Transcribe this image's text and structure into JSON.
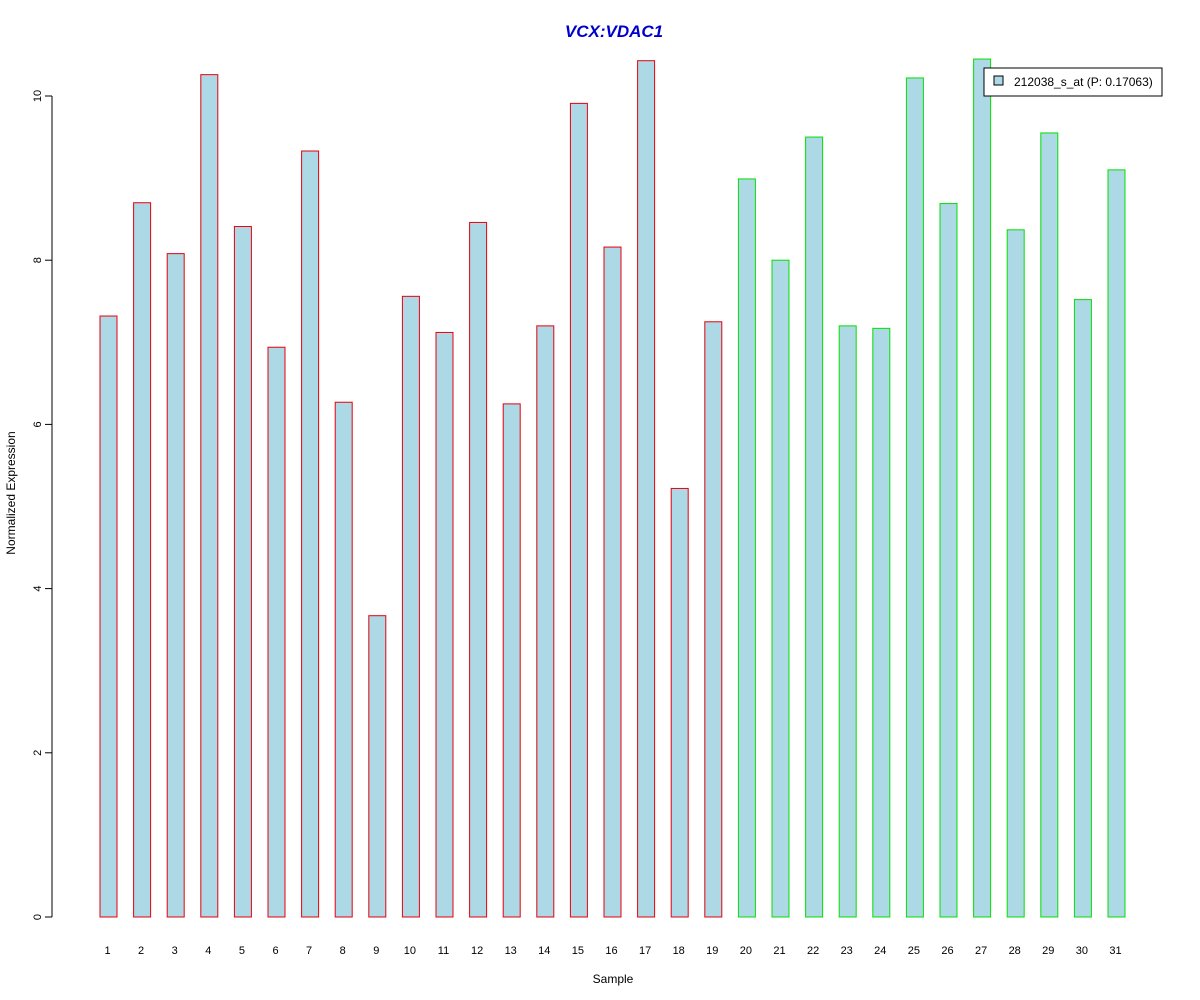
{
  "chart_data": {
    "type": "bar",
    "title": "VCX:VDAC1",
    "xlabel": "Sample",
    "ylabel": "Normalized Expression",
    "ylim": [
      0,
      10.5
    ],
    "yticks": [
      "0",
      "2",
      "4",
      "6",
      "8",
      "10"
    ],
    "categories": [
      "1",
      "2",
      "3",
      "4",
      "5",
      "6",
      "7",
      "8",
      "9",
      "10",
      "11",
      "12",
      "13",
      "14",
      "15",
      "16",
      "17",
      "18",
      "19",
      "20",
      "21",
      "22",
      "23",
      "24",
      "25",
      "26",
      "27",
      "28",
      "29",
      "30",
      "31"
    ],
    "values": [
      7.32,
      8.7,
      8.08,
      10.26,
      8.41,
      6.94,
      9.33,
      6.27,
      3.67,
      7.56,
      7.12,
      8.46,
      6.25,
      7.2,
      9.91,
      8.16,
      10.43,
      5.22,
      7.25,
      8.99,
      8.0,
      9.5,
      7.2,
      7.17,
      10.22,
      8.69,
      10.45,
      8.37,
      9.55,
      7.52,
      9.1
    ],
    "groups": [
      "red",
      "red",
      "red",
      "red",
      "red",
      "red",
      "red",
      "red",
      "red",
      "red",
      "red",
      "red",
      "red",
      "red",
      "red",
      "red",
      "red",
      "red",
      "red",
      "green",
      "green",
      "green",
      "green",
      "green",
      "green",
      "green",
      "green",
      "green",
      "green",
      "green",
      "green"
    ],
    "series": [
      {
        "name": "212038_s_at (P: 0.17063)"
      }
    ],
    "legend_position": "top-right",
    "grid": false
  },
  "colors": {
    "title": "#0000cc",
    "fill": "#add8e6",
    "red": "#e8000b",
    "green": "#00e000",
    "axis": "#000000"
  }
}
